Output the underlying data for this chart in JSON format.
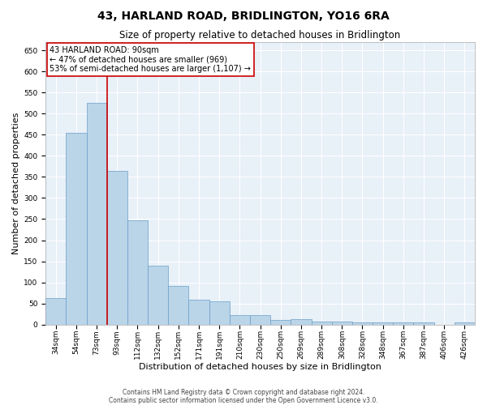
{
  "title": "43, HARLAND ROAD, BRIDLINGTON, YO16 6RA",
  "subtitle": "Size of property relative to detached houses in Bridlington",
  "xlabel": "Distribution of detached houses by size in Bridlington",
  "ylabel": "Number of detached properties",
  "bar_labels": [
    "34sqm",
    "54sqm",
    "73sqm",
    "93sqm",
    "112sqm",
    "132sqm",
    "152sqm",
    "171sqm",
    "191sqm",
    "210sqm",
    "230sqm",
    "250sqm",
    "269sqm",
    "289sqm",
    "308sqm",
    "328sqm",
    "348sqm",
    "367sqm",
    "387sqm",
    "406sqm",
    "426sqm"
  ],
  "bar_values": [
    62,
    455,
    525,
    365,
    248,
    140,
    92,
    58,
    55,
    22,
    22,
    10,
    12,
    7,
    7,
    5,
    5,
    5,
    5,
    0,
    5
  ],
  "bar_color": "#bad4e8",
  "bar_edge_color": "#6aa0c8",
  "background_color": "#e8f0f8",
  "grid_color": "#ffffff",
  "red_line_x": 2.5,
  "annotation_text": "43 HARLAND ROAD: 90sqm\n← 47% of detached houses are smaller (969)\n53% of semi-detached houses are larger (1,107) →",
  "annotation_box_color": "#ffffff",
  "annotation_border_color": "#cc0000",
  "footer_line1": "Contains HM Land Registry data © Crown copyright and database right 2024.",
  "footer_line2": "Contains public sector information licensed under the Open Government Licence v3.0.",
  "ylim": [
    0,
    670
  ],
  "yticks": [
    0,
    50,
    100,
    150,
    200,
    250,
    300,
    350,
    400,
    450,
    500,
    550,
    600,
    650
  ],
  "title_fontsize": 10,
  "subtitle_fontsize": 8.5,
  "xlabel_fontsize": 8,
  "ylabel_fontsize": 8,
  "tick_fontsize": 6.5,
  "annotation_fontsize": 7,
  "footer_fontsize": 5.5
}
